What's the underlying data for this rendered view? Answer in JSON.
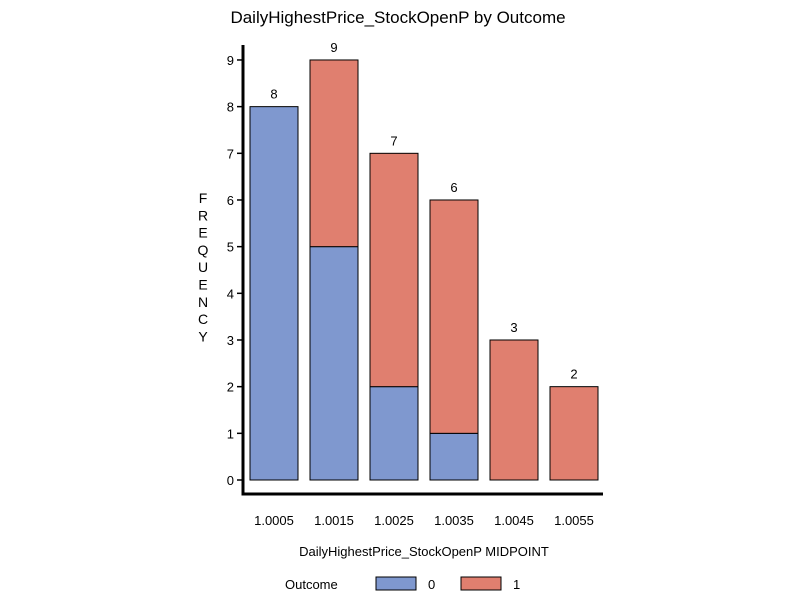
{
  "chart_data": {
    "type": "bar",
    "stacked": true,
    "title": "DailyHighestPrice_StockOpenP  by  Outcome",
    "xlabel": "DailyHighestPrice_StockOpenP  MIDPOINT",
    "ylabel": "FREQUENCY",
    "categories": [
      "1.0005",
      "1.0015",
      "1.0025",
      "1.0035",
      "1.0045",
      "1.0055"
    ],
    "series": [
      {
        "name": "0",
        "values": [
          8,
          5,
          2,
          1,
          0,
          0
        ],
        "color": "#7F98CF"
      },
      {
        "name": "1",
        "values": [
          0,
          4,
          5,
          5,
          3,
          2
        ],
        "color": "#E07F6F"
      }
    ],
    "totals": [
      8,
      9,
      7,
      6,
      3,
      2
    ],
    "ylim": [
      0,
      9
    ],
    "yticks": [
      0,
      1,
      2,
      3,
      4,
      5,
      6,
      7,
      8,
      9
    ],
    "grid": false,
    "legend": {
      "title": "Outcome",
      "position": "bottom"
    }
  }
}
